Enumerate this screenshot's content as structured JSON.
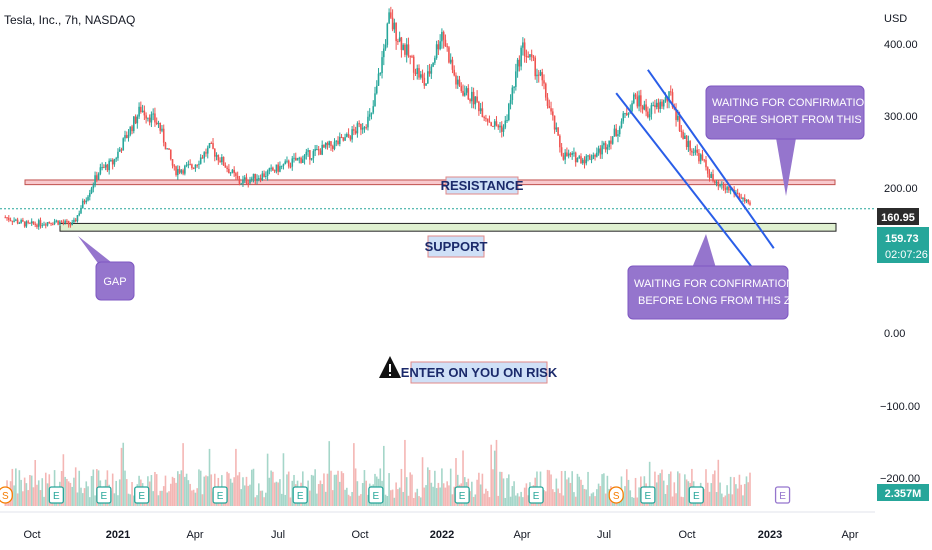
{
  "header": {
    "symbol_label": "Tesla, Inc., 7h, NASDAQ"
  },
  "price_axis": {
    "currency": "USD",
    "ticks": [
      "400.00",
      "300.00",
      "200.00",
      "0.00",
      "−100.00",
      "−200.00"
    ],
    "last_price": "160.95",
    "current_price": "159.73",
    "countdown": "02:07:26",
    "volume_value": "2.357M"
  },
  "time_axis": {
    "ticks": [
      "Oct",
      "2021",
      "Apr",
      "Jul",
      "Oct",
      "2022",
      "Apr",
      "Jul",
      "Oct",
      "2023",
      "Apr"
    ]
  },
  "annotations": {
    "resistance": "RESISTANCE",
    "support": "SUPPORT",
    "gap": "GAP",
    "short_note_line1": "WAITING FOR CONFIRMATION",
    "short_note_line2": "BEFORE SHORT FROM THIS ZONE",
    "long_note_line1": "WAITING FOR CONFIRMATION",
    "long_note_line2": "BEFORE LONG FROM THIS ZONE",
    "risk_note": "ENTER ON YOU ON RISK"
  },
  "event_markers": [
    "S",
    "E",
    "E",
    "E",
    "E",
    "E",
    "E",
    "E",
    "E",
    "S",
    "E",
    "E"
  ],
  "colors": {
    "up": "#26a69a",
    "down": "#ef5350",
    "resistance_fill": "#f8c9cd",
    "support_fill": "#dff0d0",
    "channel": "#2a5ee8",
    "callout": "#9575cd",
    "price_badge_dark": "#2b2b2b",
    "price_badge_green": "#26a69a"
  },
  "chart_data": {
    "type": "candlestick",
    "title": "Tesla, Inc., 7h, NASDAQ",
    "ylabel": "USD",
    "ylim": [
      -230,
      430
    ],
    "x_ticks": [
      "Oct",
      "2021",
      "Apr",
      "Jul",
      "Oct",
      "2022",
      "Apr",
      "Jul",
      "Oct",
      "2023",
      "Apr"
    ],
    "close_path": [
      {
        "t": "2020-08-25",
        "v": 150
      },
      {
        "t": "2020-09-20",
        "v": 140
      },
      {
        "t": "2020-10-20",
        "v": 145
      },
      {
        "t": "2020-11-10",
        "v": 140
      },
      {
        "t": "2020-11-20",
        "v": 165
      },
      {
        "t": "2020-12-10",
        "v": 210
      },
      {
        "t": "2020-12-25",
        "v": 220
      },
      {
        "t": "2021-01-10",
        "v": 255
      },
      {
        "t": "2021-01-26",
        "v": 290
      },
      {
        "t": "2021-02-15",
        "v": 270
      },
      {
        "t": "2021-03-05",
        "v": 210
      },
      {
        "t": "2021-03-25",
        "v": 215
      },
      {
        "t": "2021-04-15",
        "v": 240
      },
      {
        "t": "2021-05-18",
        "v": 195
      },
      {
        "t": "2021-06-15",
        "v": 205
      },
      {
        "t": "2021-07-15",
        "v": 220
      },
      {
        "t": "2021-08-15",
        "v": 235
      },
      {
        "t": "2021-09-15",
        "v": 250
      },
      {
        "t": "2021-10-15",
        "v": 280
      },
      {
        "t": "2021-10-28",
        "v": 360
      },
      {
        "t": "2021-11-04",
        "v": 405
      },
      {
        "t": "2021-11-25",
        "v": 360
      },
      {
        "t": "2021-12-15",
        "v": 320
      },
      {
        "t": "2022-01-03",
        "v": 390
      },
      {
        "t": "2022-01-20",
        "v": 320
      },
      {
        "t": "2022-02-10",
        "v": 300
      },
      {
        "t": "2022-03-01",
        "v": 270
      },
      {
        "t": "2022-03-15",
        "v": 265
      },
      {
        "t": "2022-04-04",
        "v": 370
      },
      {
        "t": "2022-04-25",
        "v": 330
      },
      {
        "t": "2022-05-20",
        "v": 230
      },
      {
        "t": "2022-06-15",
        "v": 225
      },
      {
        "t": "2022-07-01",
        "v": 235
      },
      {
        "t": "2022-07-20",
        "v": 260
      },
      {
        "t": "2022-08-10",
        "v": 305
      },
      {
        "t": "2022-08-25",
        "v": 285
      },
      {
        "t": "2022-09-20",
        "v": 305
      },
      {
        "t": "2022-10-05",
        "v": 250
      },
      {
        "t": "2022-10-25",
        "v": 225
      },
      {
        "t": "2022-11-10",
        "v": 190
      },
      {
        "t": "2022-11-28",
        "v": 185
      },
      {
        "t": "2022-12-10",
        "v": 175
      },
      {
        "t": "2022-12-20",
        "v": 160
      }
    ],
    "resistance_zone": [
      192,
      198
    ],
    "support_zone": [
      132,
      142
    ],
    "last_price_line": 160.95,
    "channel": {
      "upper": [
        {
          "t": "2022-08-25",
          "v": 340
        },
        {
          "t": "2023-01-15",
          "v": 110
        }
      ],
      "lower": [
        {
          "t": "2022-07-20",
          "v": 310
        },
        {
          "t": "2022-12-25",
          "v": 80
        }
      ]
    },
    "callout_targets": {
      "gap": {
        "t": "2020-11-15",
        "v": 140
      },
      "short": {
        "t": "2023-01-10",
        "v": 195
      },
      "long": {
        "t": "2022-10-25",
        "v": 140
      }
    },
    "event_dates": [
      "2020-08-25",
      "2020-10-22",
      "2020-12-15",
      "2021-01-27",
      "2021-04-26",
      "2021-07-26",
      "2021-10-20",
      "2022-01-26",
      "2022-04-20",
      "2022-07-20",
      "2022-08-25",
      "2022-10-19"
    ],
    "volume_last": 2.357
  }
}
